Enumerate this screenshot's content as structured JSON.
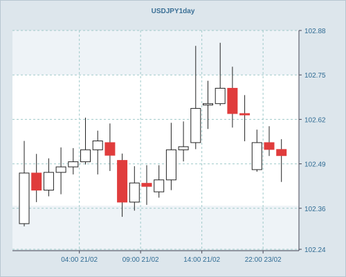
{
  "chart_data": {
    "type": "candlestick",
    "title": "USDJPY1day",
    "xlabel": "",
    "ylabel": "",
    "ylim": [
      102.24,
      102.88
    ],
    "y_ticks": [
      102.24,
      102.36,
      102.49,
      102.62,
      102.75,
      102.88
    ],
    "x_tick_labels": [
      "04:00 21/02",
      "09:00 21/02",
      "14:00 21/02",
      "22:00 23/02"
    ],
    "x_tick_candle_index": [
      4.5,
      9.5,
      14.5,
      19.5
    ],
    "grid": true,
    "colors": {
      "up": "#ffffff",
      "down": "#e03c3c",
      "outline": "#222222",
      "grid": "#9fc9c9"
    },
    "candles": [
      {
        "open": 102.315,
        "high": 102.557,
        "low": 102.307,
        "close": 102.463,
        "direction": "up"
      },
      {
        "open": 102.463,
        "high": 102.519,
        "low": 102.378,
        "close": 102.413,
        "direction": "down"
      },
      {
        "open": 102.413,
        "high": 102.506,
        "low": 102.395,
        "close": 102.465,
        "direction": "up"
      },
      {
        "open": 102.465,
        "high": 102.538,
        "low": 102.401,
        "close": 102.481,
        "direction": "up"
      },
      {
        "open": 102.481,
        "high": 102.536,
        "low": 102.459,
        "close": 102.496,
        "direction": "up"
      },
      {
        "open": 102.496,
        "high": 102.625,
        "low": 102.488,
        "close": 102.531,
        "direction": "up"
      },
      {
        "open": 102.531,
        "high": 102.587,
        "low": 102.459,
        "close": 102.557,
        "direction": "up"
      },
      {
        "open": 102.552,
        "high": 102.608,
        "low": 102.469,
        "close": 102.515,
        "direction": "down"
      },
      {
        "open": 102.5,
        "high": 102.52,
        "low": 102.335,
        "close": 102.378,
        "direction": "down"
      },
      {
        "open": 102.378,
        "high": 102.483,
        "low": 102.353,
        "close": 102.434,
        "direction": "up"
      },
      {
        "open": 102.433,
        "high": 102.486,
        "low": 102.37,
        "close": 102.424,
        "direction": "down"
      },
      {
        "open": 102.408,
        "high": 102.486,
        "low": 102.391,
        "close": 102.443,
        "direction": "up"
      },
      {
        "open": 102.443,
        "high": 102.61,
        "low": 102.413,
        "close": 102.531,
        "direction": "up"
      },
      {
        "open": 102.531,
        "high": 102.614,
        "low": 102.497,
        "close": 102.54,
        "direction": "up"
      },
      {
        "open": 102.552,
        "high": 102.835,
        "low": 102.533,
        "close": 102.652,
        "direction": "up"
      },
      {
        "open": 102.662,
        "high": 102.733,
        "low": 102.592,
        "close": 102.666,
        "direction": "up"
      },
      {
        "open": 102.666,
        "high": 102.844,
        "low": 102.66,
        "close": 102.711,
        "direction": "up"
      },
      {
        "open": 102.711,
        "high": 102.774,
        "low": 102.596,
        "close": 102.637,
        "direction": "down"
      },
      {
        "open": 102.637,
        "high": 102.691,
        "low": 102.556,
        "close": 102.635,
        "direction": "down"
      },
      {
        "open": 102.473,
        "high": 102.59,
        "low": 102.467,
        "close": 102.552,
        "direction": "up"
      },
      {
        "open": 102.552,
        "high": 102.6,
        "low": 102.513,
        "close": 102.532,
        "direction": "down"
      },
      {
        "open": 102.532,
        "high": 102.562,
        "low": 102.437,
        "close": 102.514,
        "direction": "down"
      }
    ]
  }
}
